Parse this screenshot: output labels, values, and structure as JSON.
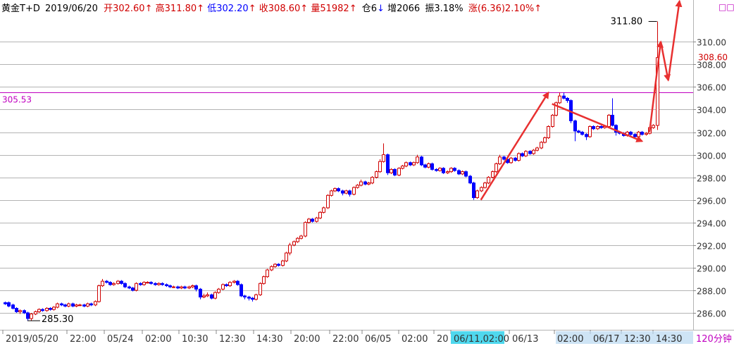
{
  "header": {
    "symbol": "黄金T+D",
    "date": "2019/06/20",
    "open_label": "开",
    "open_value": "302.60",
    "high_label": "高",
    "high_value": "311.80",
    "low_label": "低",
    "low_value": "302.20",
    "close_label": "收",
    "close_value": "308.60",
    "volume_label": "量",
    "volume_value": "51982",
    "position_label": "仓",
    "position_value": "6",
    "increase_label": "增",
    "increase_value": "2066",
    "amplitude_label": "振",
    "amplitude_value": "3.18%",
    "change_label": "涨",
    "change_value": "(6.36)2.10%",
    "up_arrow": "↑",
    "down_arrow": "↓",
    "timeframe_button": "□□"
  },
  "period_label": "120分钟",
  "colors": {
    "up": "#d00000",
    "down": "#0000ff",
    "grid": "#b4b4b4",
    "reference_line": "#c000c0",
    "annotation": "#e83030",
    "highlight_bg": "#4fd8ee",
    "highlight_bg_light": "#b9d9f1"
  },
  "chart_data": {
    "type": "candlestick",
    "title": "",
    "ylim": [
      284.5,
      313.7
    ],
    "y_ticks": [
      "286.00",
      "288.00",
      "290.00",
      "292.00",
      "294.00",
      "296.00",
      "298.00",
      "300.00",
      "302.00",
      "304.00",
      "306.00",
      "308.00",
      "310.00"
    ],
    "x_tick_labels": [
      "2019/05/20",
      "22:00",
      "05/24",
      "02:00",
      "10:30",
      "12:30",
      "14:30",
      "20:00",
      "22:00",
      "06/05",
      "02:00",
      "20",
      "06/11,02:00",
      "06/13",
      "02:00",
      "06/17",
      "12:30",
      "14:30"
    ],
    "x_tick_highlighted": "06/11,02:00",
    "reference_line": {
      "value": 305.53,
      "label": "305.53"
    },
    "last_price_label": "308.60",
    "high_annotation": {
      "label": "311.80",
      "value": 311.8
    },
    "low_annotation": {
      "label": "285.30",
      "value": 285.3
    },
    "candles": [
      [
        286.9,
        286.8,
        287.0,
        286.7
      ],
      [
        286.9,
        286.6,
        287.0,
        286.5
      ],
      [
        286.7,
        286.4,
        286.8,
        286.3
      ],
      [
        286.4,
        286.1,
        286.5,
        286.0
      ],
      [
        286.1,
        286.2,
        286.3,
        285.9
      ],
      [
        286.2,
        286.0,
        286.3,
        285.9
      ],
      [
        286.0,
        285.5,
        286.1,
        285.3
      ],
      [
        285.5,
        285.9,
        286.0,
        285.3
      ],
      [
        285.9,
        286.1,
        286.2,
        285.8
      ],
      [
        286.1,
        286.3,
        286.4,
        286.0
      ],
      [
        286.3,
        286.2,
        286.4,
        286.1
      ],
      [
        286.2,
        286.4,
        286.5,
        286.1
      ],
      [
        286.4,
        286.3,
        286.5,
        286.2
      ],
      [
        286.3,
        286.5,
        286.6,
        286.2
      ],
      [
        286.5,
        286.8,
        286.9,
        286.4
      ],
      [
        286.8,
        286.7,
        286.9,
        286.6
      ],
      [
        286.7,
        286.6,
        286.8,
        286.5
      ],
      [
        286.6,
        286.8,
        286.9,
        286.5
      ],
      [
        286.8,
        286.6,
        286.9,
        286.5
      ],
      [
        286.6,
        286.7,
        286.8,
        286.5
      ],
      [
        286.7,
        286.7,
        286.8,
        286.6
      ],
      [
        286.7,
        286.6,
        286.8,
        286.5
      ],
      [
        286.6,
        286.8,
        286.9,
        286.5
      ],
      [
        286.8,
        286.7,
        286.9,
        286.6
      ],
      [
        286.7,
        287.0,
        287.1,
        286.6
      ],
      [
        287.0,
        288.4,
        288.5,
        286.9
      ],
      [
        288.4,
        288.8,
        289.0,
        288.3
      ],
      [
        288.8,
        288.7,
        288.9,
        288.6
      ],
      [
        288.7,
        288.5,
        288.8,
        288.4
      ],
      [
        288.5,
        288.6,
        288.7,
        288.4
      ],
      [
        288.6,
        288.8,
        288.9,
        288.5
      ],
      [
        288.8,
        288.6,
        288.9,
        288.5
      ],
      [
        288.6,
        288.3,
        288.7,
        288.2
      ],
      [
        288.3,
        288.2,
        288.4,
        288.1
      ],
      [
        288.2,
        288.0,
        288.3,
        287.9
      ],
      [
        288.0,
        288.6,
        288.7,
        287.9
      ],
      [
        288.6,
        288.5,
        288.7,
        288.4
      ],
      [
        288.5,
        288.7,
        288.8,
        288.4
      ],
      [
        288.7,
        288.7,
        288.8,
        288.6
      ],
      [
        288.7,
        288.6,
        288.8,
        288.5
      ],
      [
        288.6,
        288.5,
        288.7,
        288.4
      ],
      [
        288.5,
        288.6,
        288.7,
        288.4
      ],
      [
        288.6,
        288.5,
        288.7,
        288.4
      ],
      [
        288.5,
        288.4,
        288.6,
        288.3
      ],
      [
        288.4,
        288.3,
        288.5,
        288.2
      ],
      [
        288.3,
        288.3,
        288.4,
        288.2
      ],
      [
        288.3,
        288.2,
        288.4,
        288.1
      ],
      [
        288.2,
        288.3,
        288.4,
        288.1
      ],
      [
        288.3,
        288.2,
        288.4,
        288.1
      ],
      [
        288.2,
        288.3,
        288.4,
        288.1
      ],
      [
        288.3,
        288.4,
        288.5,
        288.2
      ],
      [
        288.4,
        288.1,
        288.5,
        287.9
      ],
      [
        288.1,
        287.4,
        288.2,
        287.2
      ],
      [
        287.4,
        287.5,
        287.7,
        287.3
      ],
      [
        287.5,
        287.6,
        287.8,
        287.4
      ],
      [
        287.6,
        287.3,
        287.7,
        287.2
      ],
      [
        287.3,
        287.8,
        287.9,
        287.2
      ],
      [
        287.8,
        288.1,
        288.2,
        287.7
      ],
      [
        288.1,
        288.5,
        288.6,
        288.0
      ],
      [
        288.5,
        288.4,
        288.6,
        288.3
      ],
      [
        288.4,
        288.7,
        288.8,
        288.3
      ],
      [
        288.7,
        288.8,
        288.9,
        288.6
      ],
      [
        288.8,
        288.5,
        288.9,
        288.4
      ],
      [
        288.5,
        287.5,
        288.6,
        287.4
      ],
      [
        287.5,
        287.4,
        287.6,
        287.2
      ],
      [
        287.4,
        287.3,
        287.5,
        287.1
      ],
      [
        287.3,
        287.2,
        287.4,
        287.0
      ],
      [
        287.2,
        287.6,
        287.7,
        287.1
      ],
      [
        287.6,
        288.6,
        288.7,
        287.5
      ],
      [
        288.6,
        289.2,
        289.3,
        288.5
      ],
      [
        289.2,
        289.8,
        289.9,
        289.1
      ],
      [
        289.8,
        290.1,
        290.2,
        289.7
      ],
      [
        290.1,
        290.3,
        290.4,
        290.0
      ],
      [
        290.3,
        290.2,
        290.4,
        290.1
      ],
      [
        290.2,
        290.6,
        290.7,
        290.1
      ],
      [
        290.6,
        291.3,
        291.4,
        290.5
      ],
      [
        291.3,
        292.0,
        292.2,
        291.1
      ],
      [
        292.0,
        292.3,
        292.4,
        291.9
      ],
      [
        292.3,
        292.6,
        292.7,
        292.2
      ],
      [
        292.6,
        292.8,
        292.9,
        292.5
      ],
      [
        292.8,
        294.0,
        294.1,
        292.7
      ],
      [
        294.0,
        294.3,
        294.4,
        293.9
      ],
      [
        294.3,
        294.1,
        294.4,
        294.0
      ],
      [
        294.1,
        294.4,
        294.5,
        294.0
      ],
      [
        294.4,
        294.9,
        295.0,
        294.3
      ],
      [
        294.9,
        295.3,
        295.4,
        294.8
      ],
      [
        295.3,
        296.4,
        296.5,
        295.2
      ],
      [
        296.4,
        296.8,
        296.9,
        296.3
      ],
      [
        296.8,
        297.0,
        297.1,
        296.7
      ],
      [
        297.0,
        296.8,
        297.1,
        296.7
      ],
      [
        296.8,
        296.6,
        296.9,
        296.4
      ],
      [
        296.6,
        296.8,
        296.9,
        296.5
      ],
      [
        296.8,
        296.5,
        296.9,
        296.3
      ],
      [
        296.5,
        297.1,
        297.2,
        296.4
      ],
      [
        297.1,
        297.3,
        297.4,
        297.0
      ],
      [
        297.3,
        297.6,
        297.8,
        297.2
      ],
      [
        297.6,
        297.4,
        297.7,
        297.3
      ],
      [
        297.4,
        297.5,
        297.6,
        297.3
      ],
      [
        297.5,
        298.0,
        298.1,
        297.4
      ],
      [
        298.0,
        298.5,
        298.6,
        297.9
      ],
      [
        298.5,
        299.4,
        299.6,
        298.4
      ],
      [
        299.4,
        300.0,
        301.0,
        299.3
      ],
      [
        300.0,
        298.4,
        300.1,
        298.2
      ],
      [
        298.4,
        298.7,
        298.8,
        298.3
      ],
      [
        298.7,
        298.2,
        298.8,
        298.1
      ],
      [
        298.2,
        298.8,
        298.9,
        298.1
      ],
      [
        298.8,
        299.0,
        299.1,
        298.7
      ],
      [
        299.0,
        299.3,
        299.4,
        298.9
      ],
      [
        299.3,
        299.1,
        299.4,
        299.0
      ],
      [
        299.1,
        299.3,
        299.4,
        299.0
      ],
      [
        299.3,
        299.8,
        300.0,
        299.2
      ],
      [
        299.8,
        299.1,
        299.9,
        299.0
      ],
      [
        299.1,
        298.9,
        299.2,
        298.8
      ],
      [
        298.9,
        299.2,
        299.3,
        298.8
      ],
      [
        299.2,
        298.7,
        299.3,
        298.6
      ],
      [
        298.7,
        298.6,
        298.8,
        298.5
      ],
      [
        298.6,
        298.8,
        298.9,
        298.5
      ],
      [
        298.8,
        298.4,
        298.9,
        298.3
      ],
      [
        298.4,
        298.5,
        298.6,
        298.3
      ],
      [
        298.5,
        298.8,
        298.9,
        298.4
      ],
      [
        298.8,
        298.6,
        298.9,
        298.5
      ],
      [
        298.6,
        298.3,
        298.7,
        298.2
      ],
      [
        298.3,
        298.5,
        298.6,
        298.2
      ],
      [
        298.5,
        298.1,
        298.6,
        298.0
      ],
      [
        298.1,
        297.5,
        298.2,
        297.4
      ],
      [
        297.5,
        296.2,
        297.6,
        296.0
      ],
      [
        296.2,
        296.8,
        296.9,
        296.1
      ],
      [
        296.8,
        297.1,
        297.2,
        296.7
      ],
      [
        297.1,
        297.5,
        297.6,
        297.0
      ],
      [
        297.5,
        298.0,
        298.1,
        297.4
      ],
      [
        298.0,
        298.5,
        298.6,
        297.9
      ],
      [
        298.5,
        299.2,
        299.3,
        298.4
      ],
      [
        299.2,
        299.8,
        300.0,
        299.1
      ],
      [
        299.8,
        299.6,
        299.9,
        299.5
      ],
      [
        299.6,
        299.3,
        299.7,
        299.2
      ],
      [
        299.3,
        299.7,
        299.8,
        299.2
      ],
      [
        299.7,
        299.5,
        299.8,
        299.4
      ],
      [
        299.5,
        300.1,
        300.2,
        299.4
      ],
      [
        300.1,
        299.9,
        300.2,
        299.8
      ],
      [
        299.9,
        300.3,
        300.4,
        299.8
      ],
      [
        300.3,
        300.1,
        300.4,
        300.0
      ],
      [
        300.1,
        300.4,
        300.5,
        300.0
      ],
      [
        300.4,
        300.6,
        300.7,
        300.3
      ],
      [
        300.6,
        301.1,
        301.2,
        300.5
      ],
      [
        301.1,
        301.5,
        301.6,
        301.0
      ],
      [
        301.5,
        302.5,
        302.6,
        301.4
      ],
      [
        302.5,
        303.5,
        303.6,
        302.4
      ],
      [
        303.5,
        304.6,
        304.7,
        303.4
      ],
      [
        304.6,
        305.2,
        305.5,
        304.5
      ],
      [
        305.2,
        305.0,
        305.5,
        304.9
      ],
      [
        305.0,
        304.8,
        305.1,
        304.6
      ],
      [
        304.8,
        303.0,
        304.9,
        302.8
      ],
      [
        303.0,
        302.1,
        303.1,
        301.2
      ],
      [
        302.1,
        302.0,
        302.2,
        301.9
      ],
      [
        302.0,
        301.8,
        302.1,
        301.7
      ],
      [
        301.8,
        301.6,
        301.9,
        301.3
      ],
      [
        301.6,
        302.5,
        302.6,
        301.5
      ],
      [
        302.5,
        302.3,
        302.6,
        302.2
      ],
      [
        302.3,
        302.5,
        302.6,
        302.2
      ],
      [
        302.5,
        302.4,
        302.6,
        302.3
      ],
      [
        302.4,
        302.5,
        302.6,
        302.3
      ],
      [
        302.5,
        303.5,
        303.6,
        302.4
      ],
      [
        303.5,
        302.6,
        305.0,
        302.5
      ],
      [
        302.6,
        302.0,
        302.7,
        301.7
      ],
      [
        302.0,
        301.9,
        302.1,
        301.8
      ],
      [
        301.9,
        301.7,
        302.0,
        301.6
      ],
      [
        301.7,
        302.0,
        302.1,
        301.6
      ],
      [
        302.0,
        301.8,
        302.1,
        301.7
      ],
      [
        301.8,
        301.6,
        301.9,
        301.5
      ],
      [
        301.6,
        302.0,
        302.1,
        301.5
      ],
      [
        302.0,
        301.8,
        302.1,
        301.7
      ],
      [
        301.8,
        301.9,
        302.0,
        301.7
      ],
      [
        301.9,
        302.4,
        302.5,
        301.8
      ],
      [
        302.4,
        302.6,
        302.7,
        302.3
      ],
      [
        302.6,
        308.6,
        311.8,
        302.2
      ]
    ]
  },
  "annotations": {
    "arrows": [
      {
        "from": [
          127,
          296.0
        ],
        "to": [
          145,
          305.5
        ]
      },
      {
        "from": [
          146,
          304.5
        ],
        "to": [
          170,
          301.2
        ]
      },
      {
        "from": [
          172,
          302.0
        ],
        "to": [
          175,
          310.0
        ]
      },
      {
        "from": [
          175,
          310.0
        ],
        "to": [
          177,
          306.6
        ]
      },
      {
        "from": [
          177,
          306.6
        ],
        "to": [
          180,
          313.6
        ]
      }
    ]
  }
}
